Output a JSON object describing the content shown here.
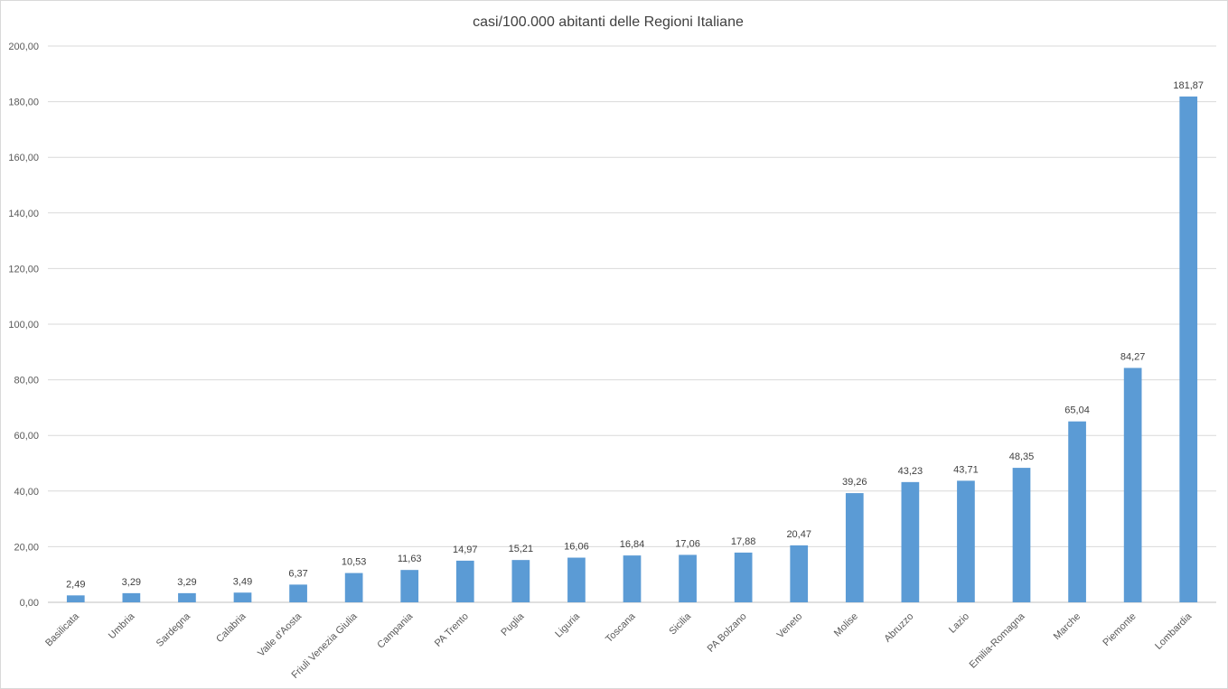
{
  "chart_data": {
    "type": "bar",
    "title": "casi/100.000 abitanti delle Regioni Italiane",
    "xlabel": "",
    "ylabel": "",
    "ylim": [
      0,
      200
    ],
    "ytick_step": 20,
    "ytick_labels": [
      "0,00",
      "20,00",
      "40,00",
      "60,00",
      "80,00",
      "100,00",
      "120,00",
      "140,00",
      "160,00",
      "180,00",
      "200,00"
    ],
    "grid": true,
    "legend": "none",
    "bar_color": "#5b9bd5",
    "categories": [
      "Basilicata",
      "Umbria",
      "Sardegna",
      "Calabria",
      "Valle d'Aosta",
      "Friuli Venezia Giulia",
      "Campania",
      "PA Trento",
      "Puglia",
      "Liguria",
      "Toscana",
      "Sicilia",
      "PA Bolzano",
      "Veneto",
      "Molise",
      "Abruzzo",
      "Lazio",
      "Emilia-Romagna",
      "Marche",
      "Piemonte",
      "Lombardia"
    ],
    "values": [
      2.49,
      3.29,
      3.29,
      3.49,
      6.37,
      10.53,
      11.63,
      14.97,
      15.21,
      16.06,
      16.84,
      17.06,
      17.88,
      20.47,
      39.26,
      43.23,
      43.71,
      48.35,
      65.04,
      84.27,
      181.87
    ],
    "data_labels": [
      "2,49",
      "3,29",
      "3,29",
      "3,49",
      "6,37",
      "10,53",
      "11,63",
      "14,97",
      "15,21",
      "16,06",
      "16,84",
      "17,06",
      "17,88",
      "20,47",
      "39,26",
      "43,23",
      "43,71",
      "48,35",
      "65,04",
      "84,27",
      "181,87"
    ]
  }
}
